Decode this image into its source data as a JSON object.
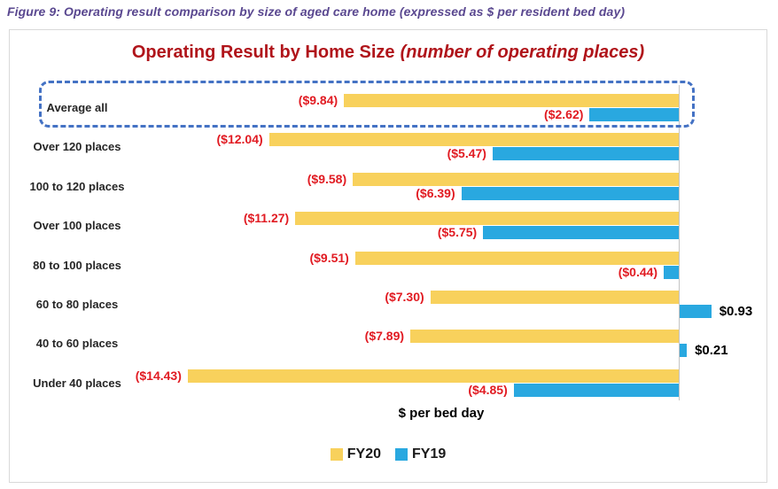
{
  "figure_caption": "Figure 9: Operating result comparison by size of aged care home (expressed as $ per resident bed day)",
  "chart": {
    "title_main": "Operating Result by Home Size",
    "title_italic": "(number of operating places)",
    "xlabel": "$ per bed day"
  },
  "colors": {
    "fy20": "#F8D15C",
    "fy19": "#29A8E0",
    "negative_label": "#E11B22",
    "positive_label": "#000000",
    "title": "#B0141A",
    "caption": "#5A4890",
    "highlight_border": "#4472C4",
    "axis_line": "#C4C4C4",
    "box_border": "#D9D9D9"
  },
  "chart_data": {
    "type": "bar",
    "orientation": "horizontal",
    "title": "Operating Result by Home Size (number of operating places)",
    "xlabel": "$ per bed day",
    "unit": "$ per resident bed day",
    "categories": [
      "Average all",
      "Over 120 places",
      "100 to 120 places",
      "Over 100 places",
      "80 to 100 places",
      "60 to 80 places",
      "40 to 60 places",
      "Under 40 places"
    ],
    "series": [
      {
        "name": "FY20",
        "color": "#F8D15C",
        "values": [
          -9.84,
          -12.04,
          -9.58,
          -11.27,
          -9.51,
          -7.3,
          -7.89,
          -14.43
        ],
        "labels": [
          "($9.84)",
          "($12.04)",
          "($9.58)",
          "($11.27)",
          "($9.51)",
          "($7.30)",
          "($7.89)",
          "($14.43)"
        ]
      },
      {
        "name": "FY19",
        "color": "#29A8E0",
        "values": [
          -2.62,
          -5.47,
          -6.39,
          -5.75,
          -0.44,
          0.93,
          0.21,
          -4.85
        ],
        "labels": [
          "($2.62)",
          "($5.47)",
          "($6.39)",
          "($5.75)",
          "($0.44)",
          "$0.93",
          "$0.21",
          "($4.85)"
        ]
      }
    ],
    "value_label_format": "negatives shown in red parentheses, positives in black",
    "xlim": [
      -19.6,
      2.6
    ],
    "grid": false,
    "x_axis_ticks_visible": false,
    "legend": {
      "position": "bottom",
      "entries": [
        "FY20",
        "FY19"
      ]
    },
    "highlight": {
      "category": "Average all",
      "style": "blue dashed rounded border"
    }
  }
}
